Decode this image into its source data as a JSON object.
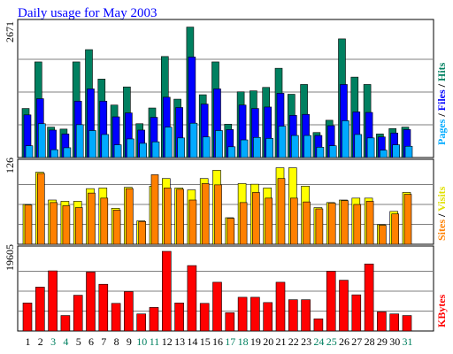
{
  "title": "Daily usage for May 2003",
  "panels": {
    "top": {
      "max_label": "2671"
    },
    "middle": {
      "max_label": "126"
    },
    "bottom": {
      "max_label": "19605"
    }
  },
  "legends": {
    "top": [
      {
        "text": "Pages",
        "color": "#00aaff"
      },
      {
        "text": " / ",
        "color": "#000000"
      },
      {
        "text": "Files",
        "color": "#0000ff"
      },
      {
        "text": " / ",
        "color": "#000000"
      },
      {
        "text": "Hits",
        "color": "#008060"
      }
    ],
    "middle": [
      {
        "text": "Sites",
        "color": "#ff8000"
      },
      {
        "text": " / ",
        "color": "#000000"
      },
      {
        "text": "Visits",
        "color": "#e0e000"
      }
    ],
    "bottom": [
      {
        "text": "KBytes",
        "color": "#ff0000"
      }
    ]
  },
  "colors": {
    "hits": "#008060",
    "files": "#0000ff",
    "pages": "#00aaff",
    "visits": "#ffff00",
    "sites": "#ff8000",
    "kbytes": "#ff0000",
    "weekday_label": "#000000",
    "weekend_label": "#008060"
  },
  "chart_data": {
    "type": "bar",
    "x": [
      "1",
      "2",
      "3",
      "4",
      "5",
      "6",
      "7",
      "8",
      "9",
      "10",
      "11",
      "12",
      "13",
      "14",
      "15",
      "16",
      "17",
      "18",
      "19",
      "20",
      "21",
      "22",
      "23",
      "24",
      "25",
      "26",
      "27",
      "28",
      "29",
      "30",
      "31"
    ],
    "weekend_days": [
      "3",
      "4",
      "10",
      "11",
      "17",
      "18",
      "24",
      "25",
      "31"
    ],
    "series": [
      {
        "name": "Hits",
        "panel": "top",
        "ymax": 2671,
        "values": [
          1000,
          1950,
          620,
          580,
          1950,
          2200,
          1600,
          1070,
          1440,
          690,
          1010,
          2060,
          1190,
          2660,
          1280,
          1950,
          680,
          1340,
          1360,
          1430,
          1820,
          1290,
          1490,
          510,
          760,
          2420,
          1640,
          1490,
          480,
          590,
          620
        ]
      },
      {
        "name": "Files",
        "panel": "top",
        "ymax": 2671,
        "values": [
          870,
          1200,
          560,
          480,
          1150,
          1400,
          1150,
          830,
          910,
          560,
          820,
          1230,
          1020,
          2050,
          1090,
          1400,
          570,
          1070,
          1000,
          1030,
          1310,
          860,
          880,
          450,
          650,
          1490,
          930,
          920,
          420,
          500,
          570
        ]
      },
      {
        "name": "Pages",
        "panel": "top",
        "ymax": 2671,
        "values": [
          240,
          690,
          160,
          200,
          670,
          550,
          470,
          260,
          380,
          290,
          320,
          620,
          400,
          700,
          420,
          550,
          220,
          360,
          410,
          390,
          640,
          450,
          450,
          210,
          240,
          750,
          470,
          400,
          150,
          260,
          230
        ]
      },
      {
        "name": "Visits",
        "panel": "middle",
        "ymax": 126,
        "values": [
          63,
          114,
          70,
          68,
          68,
          88,
          89,
          57,
          90,
          37,
          92,
          104,
          89,
          86,
          104,
          117,
          42,
          96,
          95,
          89,
          121,
          121,
          92,
          58,
          66,
          70,
          73,
          73,
          31,
          52,
          82
        ]
      },
      {
        "name": "Sites",
        "panel": "middle",
        "ymax": 126,
        "values": [
          62,
          112,
          66,
          61,
          58,
          81,
          73,
          54,
          88,
          36,
          110,
          89,
          87,
          70,
          96,
          94,
          41,
          66,
          82,
          73,
          104,
          73,
          67,
          56,
          65,
          69,
          63,
          68,
          30,
          48,
          79
        ]
      },
      {
        "name": "KBytes",
        "panel": "bottom",
        "ymax": 19605,
        "values": [
          6900,
          10800,
          14800,
          3800,
          8800,
          14500,
          11500,
          6800,
          9700,
          4200,
          5800,
          19600,
          6900,
          16100,
          6800,
          12000,
          4500,
          8300,
          8300,
          7000,
          12000,
          7700,
          7700,
          3000,
          14700,
          12500,
          8900,
          16500,
          4700,
          4200,
          3800
        ]
      }
    ]
  }
}
